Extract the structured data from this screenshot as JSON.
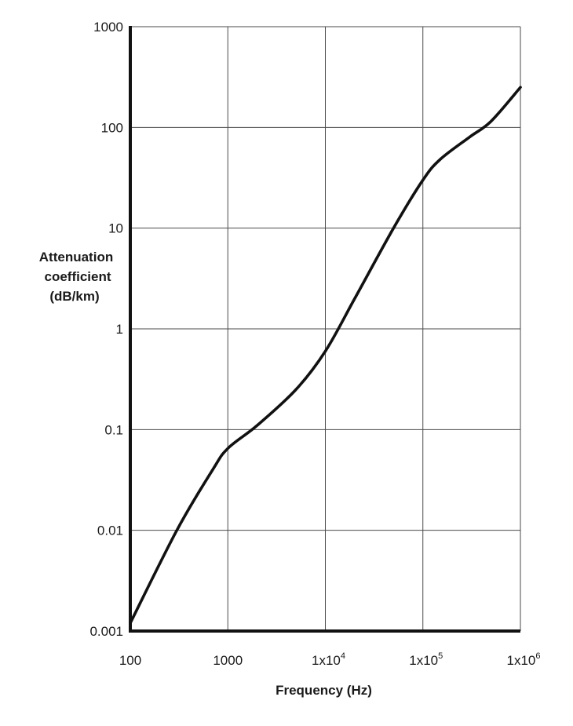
{
  "chart_data": {
    "type": "line",
    "xlabel": "Frequency (Hz)",
    "ylabel": [
      "Attenuation",
      "coefficient",
      "(dB/km)"
    ],
    "x_scale": "log",
    "y_scale": "log",
    "xlim": [
      100,
      1000000
    ],
    "ylim": [
      0.001,
      1000
    ],
    "grid": true,
    "x_ticks": [
      {
        "value": 100,
        "base": "100",
        "exp": ""
      },
      {
        "value": 1000,
        "base": "1000",
        "exp": ""
      },
      {
        "value": 10000,
        "base": "1x10",
        "exp": "4"
      },
      {
        "value": 100000,
        "base": "1x10",
        "exp": "5"
      },
      {
        "value": 1000000,
        "base": "1x10",
        "exp": "6"
      }
    ],
    "y_ticks": [
      {
        "value": 1000,
        "label": "1000"
      },
      {
        "value": 100,
        "label": "100"
      },
      {
        "value": 10,
        "label": "10"
      },
      {
        "value": 1,
        "label": "1"
      },
      {
        "value": 0.1,
        "label": "0.1"
      },
      {
        "value": 0.01,
        "label": "0.01"
      },
      {
        "value": 0.001,
        "label": "0.001"
      }
    ],
    "series": [
      {
        "x": [
          100,
          300,
          700,
          1000,
          2000,
          5000,
          10000,
          20000,
          50000,
          100000,
          150000,
          300000,
          500000,
          1000000
        ],
        "y": [
          0.0012,
          0.01,
          0.04,
          0.065,
          0.11,
          0.25,
          0.6,
          2.0,
          10,
          30,
          48,
          80,
          115,
          250
        ]
      }
    ]
  }
}
